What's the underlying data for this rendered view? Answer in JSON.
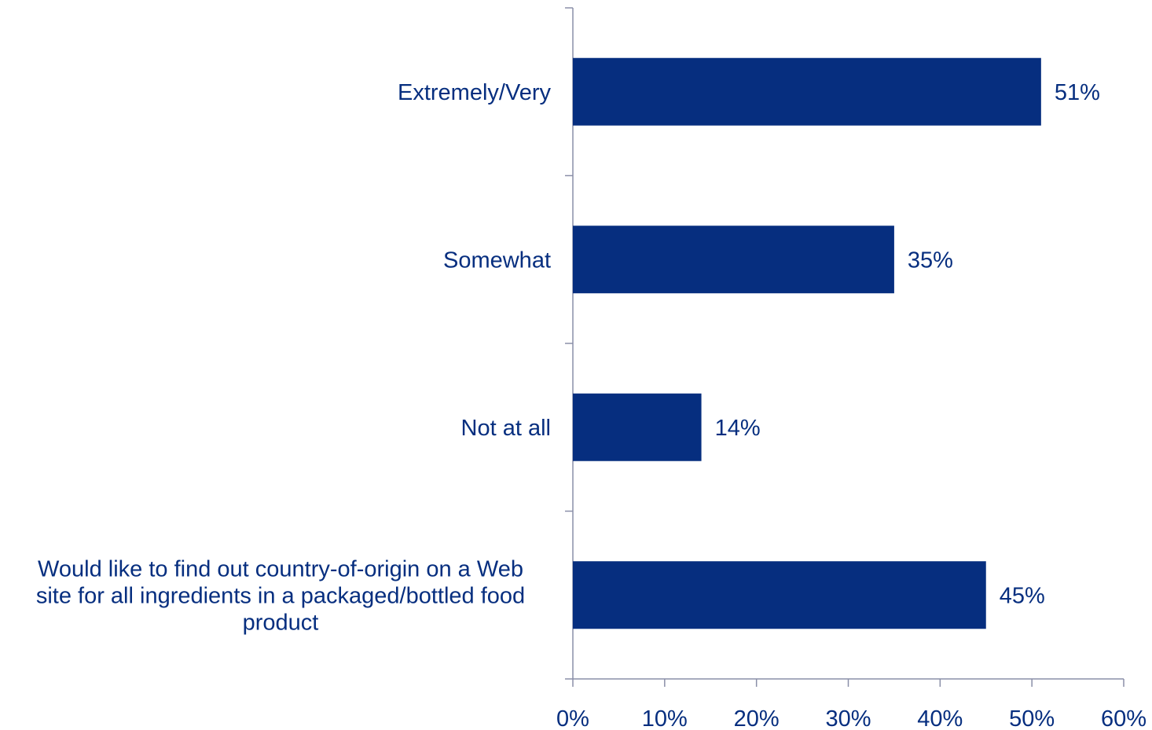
{
  "chart_data": {
    "type": "bar",
    "orientation": "horizontal",
    "categories": [
      "Extremely/Very",
      "Somewhat",
      "Not at all",
      "Would like to find out country-of-origin on a Web site for all ingredients in a packaged/bottled food product"
    ],
    "category_lines": [
      [
        "Extremely/Very"
      ],
      [
        "Somewhat"
      ],
      [
        "Not at all"
      ],
      [
        "Would like to find out country-of-origin on a Web",
        "site for all ingredients in a packaged/bottled food",
        "product"
      ]
    ],
    "values": [
      51,
      35,
      14,
      45
    ],
    "value_labels": [
      "51%",
      "35%",
      "14%",
      "45%"
    ],
    "x_ticks": [
      "0%",
      "10%",
      "20%",
      "30%",
      "40%",
      "50%",
      "60%"
    ],
    "xlim": [
      0,
      60
    ],
    "title": "",
    "xlabel": "",
    "ylabel": "",
    "grid": false,
    "legend": "none",
    "colors": {
      "bar": "#062E7F",
      "text": "#062E7F",
      "axis": "#8A8FA8"
    }
  }
}
